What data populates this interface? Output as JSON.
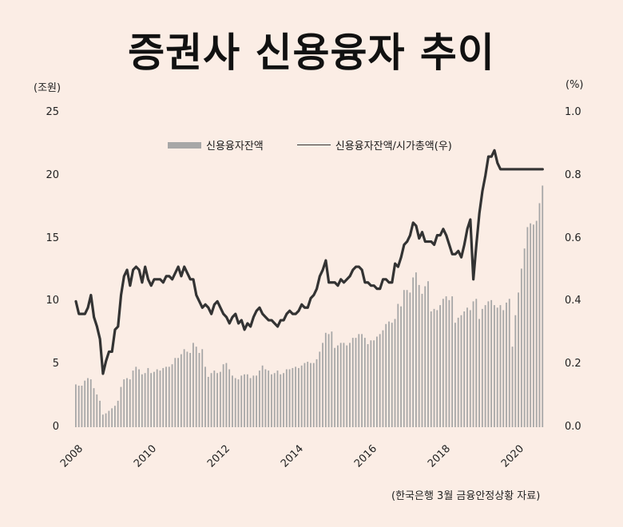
{
  "title": "증권사 신용융자 추이",
  "left_unit": "(조원)",
  "right_unit": "(%)",
  "left_ticks": [
    "25",
    "20",
    "15",
    "10",
    "5",
    "0"
  ],
  "right_ticks": [
    "1.0",
    "0.8",
    "0.6",
    "0.4",
    "0.2",
    "0.0"
  ],
  "x_ticks": [
    "2008",
    "2010",
    "2012",
    "2014",
    "2016",
    "2018",
    "2020"
  ],
  "legend": {
    "bar_label": "신용융자잔액",
    "line_label": "신용융자잔액/시가총액(우)"
  },
  "source": "(한국은행 3월 금융안정상황 자료)",
  "colors": {
    "background": "#fbede5",
    "bar": "#a7a7a7",
    "line": "#333333"
  },
  "chart_data": {
    "type": "bar+line",
    "title": "증권사 신용융자 추이",
    "xlabel": "",
    "ylabel": "(조원)",
    "ylabel_right": "(%)",
    "ylim": [
      0,
      25
    ],
    "ylim_right": [
      0.0,
      1.0
    ],
    "x_start": "2008-01",
    "x_frequency": "monthly",
    "x_tick_labels": [
      "2008",
      "2010",
      "2012",
      "2014",
      "2016",
      "2018",
      "2020"
    ],
    "grid": false,
    "legend_position": "top-center",
    "series": [
      {
        "name": "신용융자잔액",
        "type": "bar",
        "axis": "left",
        "values": [
          3.4,
          3.3,
          3.3,
          3.7,
          3.9,
          3.8,
          3.1,
          2.6,
          2.1,
          1.0,
          1.1,
          1.3,
          1.5,
          1.7,
          2.1,
          3.2,
          3.8,
          3.9,
          3.8,
          4.5,
          4.8,
          4.6,
          4.2,
          4.3,
          4.7,
          4.3,
          4.4,
          4.6,
          4.5,
          4.7,
          4.8,
          4.8,
          5.0,
          5.5,
          5.5,
          5.8,
          6.2,
          6.0,
          5.9,
          6.7,
          6.4,
          5.9,
          6.2,
          4.8,
          4.0,
          4.3,
          4.5,
          4.3,
          4.4,
          5.0,
          5.1,
          4.6,
          4.1,
          3.9,
          3.8,
          4.1,
          4.2,
          4.2,
          3.9,
          4.1,
          4.1,
          4.5,
          4.9,
          4.6,
          4.5,
          4.2,
          4.3,
          4.5,
          4.2,
          4.3,
          4.6,
          4.6,
          4.7,
          4.8,
          4.7,
          4.9,
          5.1,
          5.2,
          5.1,
          5.1,
          5.4,
          6.0,
          6.7,
          7.5,
          7.4,
          7.6,
          6.3,
          6.5,
          6.7,
          6.7,
          6.5,
          6.7,
          7.1,
          7.1,
          7.4,
          7.4,
          7.1,
          6.6,
          6.9,
          6.9,
          7.2,
          7.4,
          7.7,
          8.2,
          8.4,
          8.3,
          8.6,
          9.8,
          9.6,
          10.9,
          10.9,
          10.7,
          11.9,
          12.3,
          11.3,
          10.6,
          11.2,
          11.6,
          9.2,
          9.4,
          9.3,
          9.7,
          10.2,
          10.4,
          10.1,
          10.4,
          8.3,
          8.7,
          8.9,
          9.2,
          9.5,
          9.3,
          10.0,
          10.2,
          8.6,
          9.4,
          9.7,
          10.0,
          10.1,
          9.7,
          9.5,
          9.7,
          9.3,
          9.9,
          10.2,
          6.4,
          8.9,
          10.7,
          12.6,
          14.2,
          15.9,
          16.2,
          16.1,
          16.4,
          17.8,
          19.2
        ]
      },
      {
        "name": "신용융자잔액/시가총액(우)",
        "type": "line",
        "axis": "right",
        "values": [
          0.4,
          0.36,
          0.36,
          0.36,
          0.38,
          0.42,
          0.35,
          0.32,
          0.28,
          0.17,
          0.21,
          0.24,
          0.24,
          0.31,
          0.32,
          0.42,
          0.48,
          0.5,
          0.45,
          0.5,
          0.51,
          0.5,
          0.46,
          0.51,
          0.47,
          0.45,
          0.47,
          0.47,
          0.47,
          0.46,
          0.48,
          0.48,
          0.47,
          0.49,
          0.51,
          0.48,
          0.51,
          0.49,
          0.47,
          0.47,
          0.42,
          0.4,
          0.38,
          0.39,
          0.38,
          0.36,
          0.39,
          0.4,
          0.38,
          0.36,
          0.35,
          0.33,
          0.35,
          0.36,
          0.33,
          0.34,
          0.31,
          0.33,
          0.32,
          0.35,
          0.37,
          0.38,
          0.36,
          0.35,
          0.34,
          0.34,
          0.33,
          0.32,
          0.34,
          0.34,
          0.36,
          0.37,
          0.36,
          0.36,
          0.37,
          0.39,
          0.38,
          0.38,
          0.41,
          0.42,
          0.44,
          0.48,
          0.5,
          0.53,
          0.46,
          0.46,
          0.46,
          0.45,
          0.47,
          0.46,
          0.47,
          0.48,
          0.5,
          0.51,
          0.51,
          0.5,
          0.46,
          0.46,
          0.45,
          0.45,
          0.44,
          0.44,
          0.47,
          0.47,
          0.46,
          0.46,
          0.52,
          0.51,
          0.54,
          0.58,
          0.59,
          0.61,
          0.65,
          0.64,
          0.6,
          0.62,
          0.59,
          0.59,
          0.59,
          0.58,
          0.61,
          0.61,
          0.63,
          0.61,
          0.58,
          0.55,
          0.55,
          0.56,
          0.54,
          0.58,
          0.63,
          0.66,
          0.47,
          0.58,
          0.68,
          0.75,
          0.8,
          0.86,
          0.86,
          0.88,
          0.84,
          0.82,
          0.82,
          0.82,
          0.82,
          0.82,
          0.82,
          0.82,
          0.82,
          0.82,
          0.82,
          0.82,
          0.82,
          0.82,
          0.82,
          0.82
        ]
      }
    ]
  }
}
